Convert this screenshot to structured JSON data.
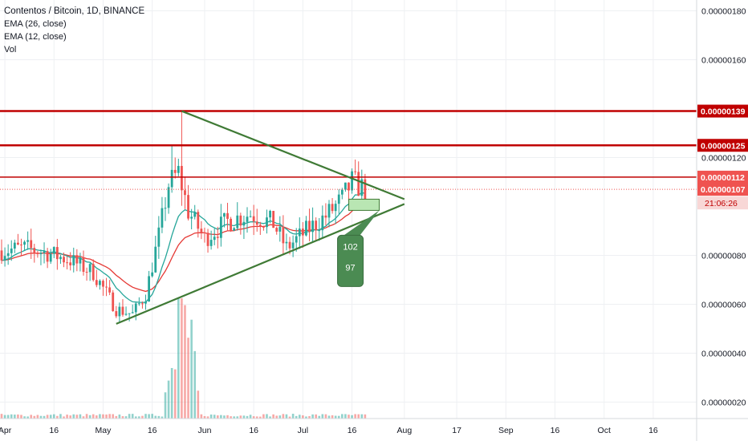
{
  "legend": {
    "title": "Contentos / Bitcoin, 1D, BINANCE",
    "ema26": "EMA (26, close)",
    "ema12": "EMA (12, close)",
    "vol": "Vol"
  },
  "colors": {
    "up": "#26a69a",
    "down": "#ef5350",
    "ema26": "#e53935",
    "ema12": "#26a69a",
    "resistance": "#c00000",
    "triangle": "#3f7a35",
    "callout": "#4b8b52",
    "grid": "#eef0f3"
  },
  "chart_data": {
    "type": "candlestick",
    "title": "Contentos / Bitcoin, 1D, BINANCE",
    "indicators": [
      "EMA (26, close)",
      "EMA (12, close)",
      "Vol"
    ],
    "x_tick_labels": [
      "Apr",
      "16",
      "May",
      "16",
      "Jun",
      "16",
      "Jul",
      "16",
      "Aug",
      "17",
      "Sep",
      "16",
      "Oct",
      "16"
    ],
    "y_tick_labels": [
      "0.00000180",
      "0.00000160",
      "0.00000120",
      "0.00000080",
      "0.00000060",
      "0.00000040",
      "0.00000020"
    ],
    "ylim": [
      0.0,
      1.9e-06
    ],
    "price_labels": [
      {
        "text": "0.00000139",
        "value": 1.39e-06,
        "style": "resistance"
      },
      {
        "text": "0.00000125",
        "value": 1.25e-06,
        "style": "resistance"
      },
      {
        "text": "0.00000112",
        "value": 1.12e-06,
        "style": "current"
      },
      {
        "text": "0.00000107",
        "value": 1.07e-06,
        "style": "current"
      }
    ],
    "countdown": "21:06:26",
    "horizontal_levels": [
      1.39e-06,
      1.25e-06,
      1.12e-06
    ],
    "triangle": {
      "upper": [
        [
          "2019-05-25",
          1.39e-06
        ],
        [
          "2019-08-01",
          1.03e-06
        ]
      ],
      "lower": [
        [
          "2019-05-05",
          5.2e-07
        ],
        [
          "2019-08-01",
          1.01e-06
        ]
      ]
    },
    "callout": {
      "values": [
        "102",
        "97"
      ]
    },
    "close_series_approx": [
      [
        "2019-03-31",
        8.2e-07
      ],
      [
        "2019-04-07",
        8.3e-07
      ],
      [
        "2019-04-14",
        8.1e-07
      ],
      [
        "2019-04-21",
        7.8e-07
      ],
      [
        "2019-04-28",
        7.3e-07
      ],
      [
        "2019-05-05",
        5.8e-07
      ],
      [
        "2019-05-10",
        5.6e-07
      ],
      [
        "2019-05-14",
        6.4e-07
      ],
      [
        "2019-05-18",
        8.8e-07
      ],
      [
        "2019-05-21",
        1.09e-06
      ],
      [
        "2019-05-24",
        1.14e-06
      ],
      [
        "2019-05-27",
        9.8e-07
      ],
      [
        "2019-06-01",
        8.7e-07
      ],
      [
        "2019-06-08",
        9.4e-07
      ],
      [
        "2019-06-15",
        9.7e-07
      ],
      [
        "2019-06-22",
        9.3e-07
      ],
      [
        "2019-06-26",
        8.3e-07
      ],
      [
        "2019-07-03",
        9.1e-07
      ],
      [
        "2019-07-08",
        9.6e-07
      ],
      [
        "2019-07-13",
        1.03e-06
      ],
      [
        "2019-07-16",
        1.1e-06
      ],
      [
        "2019-07-20",
        1.07e-06
      ]
    ],
    "grid": true
  }
}
